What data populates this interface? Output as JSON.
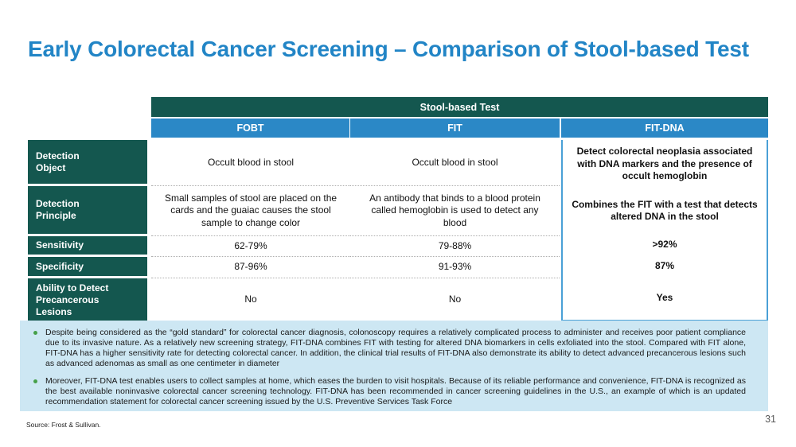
{
  "slide": {
    "title": "Early Colorectal Cancer Screening – Comparison of Stool-based Test",
    "source": "Source: Frost & Sullivan.",
    "page_number": "31"
  },
  "colors": {
    "title_blue": "#2285c6",
    "teal_header": "#14574f",
    "column_header_blue": "#2b88c6",
    "fitdna_border_blue": "#4aa0d6",
    "notes_background": "#cde7f3",
    "bullet_green": "#46a049"
  },
  "table": {
    "group_header": "Stool-based Test",
    "columns": [
      "FOBT",
      "FIT",
      "FIT-DNA"
    ],
    "rows": [
      {
        "label": "Detection\nObject",
        "fobt": "Occult blood in stool",
        "fit": "Occult blood in stool"
      },
      {
        "label": "Detection\nPrinciple",
        "fobt": "Small samples of stool are placed on the cards and the guaiac causes the stool sample to change color",
        "fit": "An antibody that binds to a blood protein called hemoglobin is used to detect any blood"
      },
      {
        "label": "Sensitivity",
        "fobt": "62-79%",
        "fit": "79-88%",
        "fitdna": ">92%"
      },
      {
        "label": "Specificity",
        "fobt": "87-96%",
        "fit": "91-93%",
        "fitdna": "87%"
      },
      {
        "label": "Ability to Detect\nPrecancerous\nLesions",
        "fobt": "No",
        "fit": "No",
        "fitdna": "Yes"
      }
    ],
    "fitdna_merged": {
      "para1": "Detect colorectal neoplasia associated with DNA markers and the presence of occult hemoglobin",
      "para2": "Combines the FIT with a test that detects altered DNA in the stool"
    }
  },
  "notes": {
    "bullets": [
      "Despite being considered as the “gold standard” for colorectal cancer diagnosis, colonoscopy requires a relatively complicated process to administer and receives poor patient compliance due to its invasive nature. As a relatively new screening strategy, FIT-DNA combines FIT with testing for altered DNA biomarkers in cells exfoliated into the stool. Compared with FIT alone, FIT-DNA has a higher sensitivity rate for detecting colorectal cancer. In addition, the clinical trial results of FIT-DNA also demonstrate its ability to detect advanced precancerous lesions such as advanced adenomas as small as one centimeter in diameter",
      "Moreover, FIT-DNA test enables users to collect samples at home, which eases the burden to visit hospitals. Because of its reliable performance and convenience, FIT-DNA is recognized as the best available noninvasive colorectal cancer screening technology. FIT-DNA has been recommended in cancer screening guidelines in the U.S., an example of which is an updated recommendation statement for colorectal cancer screening issued by the U.S. Preventive Services Task Force"
    ]
  }
}
